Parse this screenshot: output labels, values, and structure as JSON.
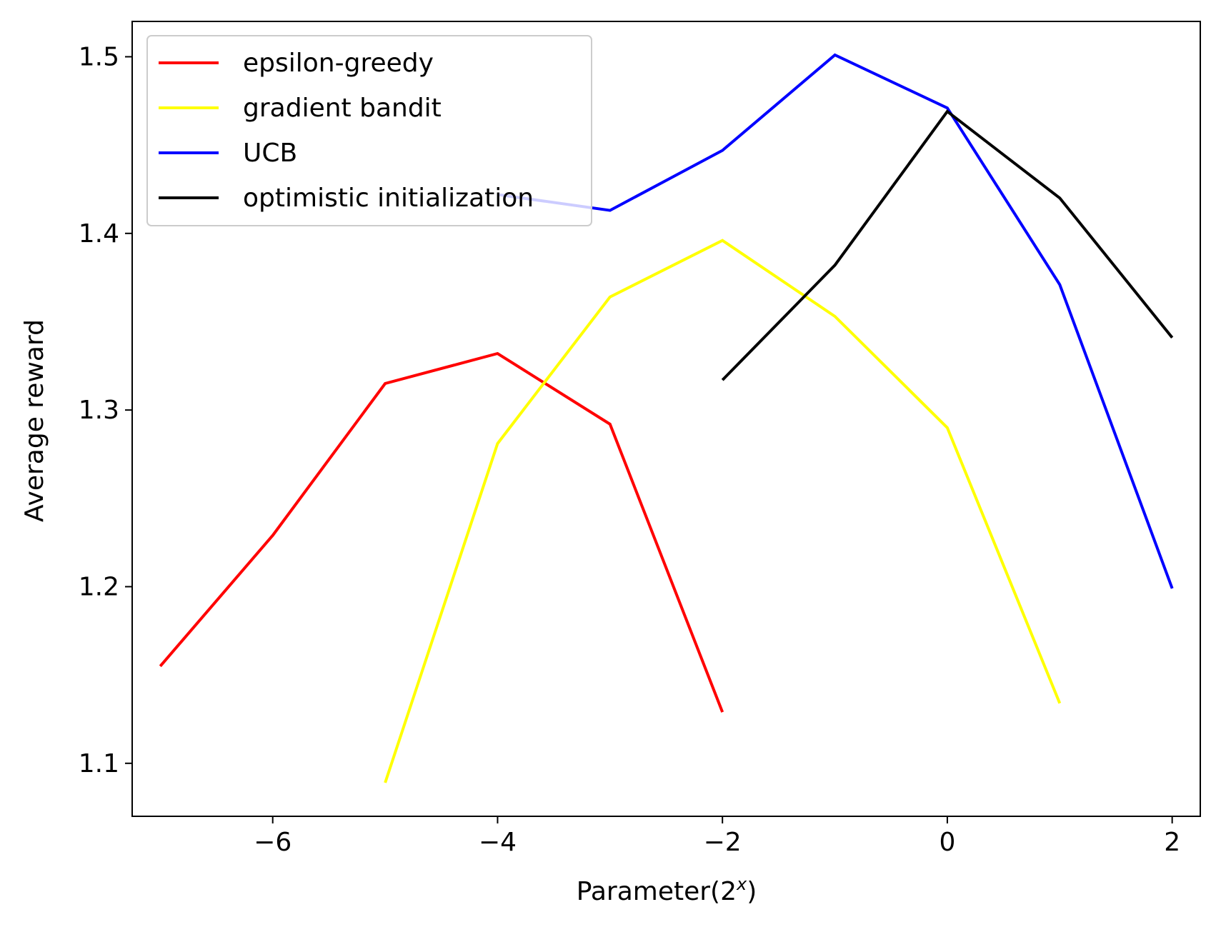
{
  "chart_data": {
    "type": "line",
    "xlabel": {
      "text": "Parameter(2",
      "sup": "x",
      "close": ")"
    },
    "ylabel": "Average reward",
    "xlim": [
      -7.25,
      2.25
    ],
    "ylim": [
      1.07,
      1.52
    ],
    "xticks": [
      -6,
      -4,
      -2,
      0,
      2
    ],
    "xtick_labels": [
      "−6",
      "−4",
      "−2",
      "0",
      "2"
    ],
    "yticks": [
      1.1,
      1.2,
      1.3,
      1.4,
      1.5
    ],
    "ytick_labels": [
      "1.1",
      "1.2",
      "1.3",
      "1.4",
      "1.5"
    ],
    "grid": false,
    "legend_position": "top-left",
    "series": [
      {
        "name": "epsilon-greedy",
        "color": "#ff0000",
        "x": [
          -7,
          -6,
          -5,
          -4,
          -3,
          -2
        ],
        "y": [
          1.155,
          1.229,
          1.315,
          1.332,
          1.292,
          1.129
        ]
      },
      {
        "name": "gradient bandit",
        "color": "#ffff00",
        "x": [
          -5,
          -4,
          -3,
          -2,
          -1,
          0,
          1
        ],
        "y": [
          1.089,
          1.281,
          1.364,
          1.396,
          1.353,
          1.29,
          1.134
        ]
      },
      {
        "name": "UCB",
        "color": "#0000ff",
        "x": [
          -4,
          -3,
          -2,
          -1,
          0,
          1,
          2
        ],
        "y": [
          1.422,
          1.413,
          1.447,
          1.501,
          1.471,
          1.371,
          1.199
        ]
      },
      {
        "name": "optimistic initialization",
        "color": "#000000",
        "x": [
          -2,
          -1,
          0,
          1,
          2
        ],
        "y": [
          1.317,
          1.382,
          1.469,
          1.42,
          1.341
        ]
      }
    ]
  }
}
